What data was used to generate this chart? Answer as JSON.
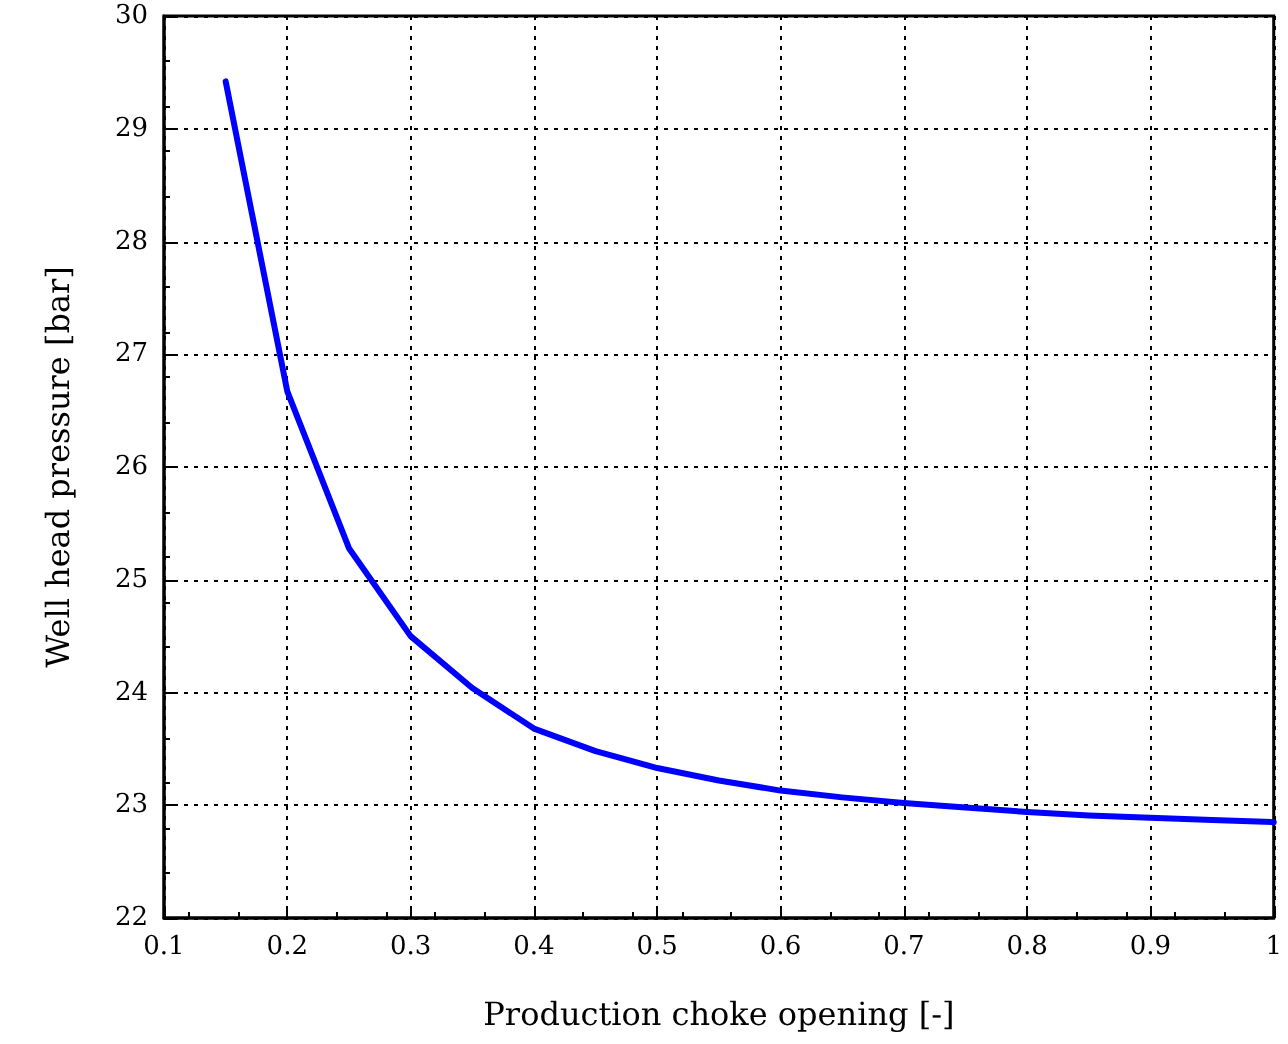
{
  "chart_data": {
    "type": "line",
    "xlabel": "Production choke opening [-]",
    "ylabel": "Well head pressure [bar]",
    "series": [
      {
        "color": "#0000ff",
        "x": [
          0.15,
          0.2,
          0.25,
          0.3,
          0.35,
          0.4,
          0.45,
          0.5,
          0.55,
          0.6,
          0.65,
          0.7,
          0.75,
          0.8,
          0.85,
          0.9,
          0.95,
          1.0
        ],
        "values": [
          29.42,
          26.67,
          25.28,
          24.5,
          24.04,
          23.68,
          23.48,
          23.33,
          23.22,
          23.13,
          23.07,
          23.02,
          22.98,
          22.94,
          22.91,
          22.89,
          22.87,
          22.85
        ]
      }
    ],
    "xlim": [
      0.1,
      1
    ],
    "xticks": [
      0.1,
      0.2,
      0.3,
      0.4,
      0.5,
      0.6,
      0.7,
      0.8,
      0.9,
      1
    ],
    "ylim": [
      22,
      30
    ],
    "yticks": [
      22,
      23,
      24,
      25,
      26,
      27,
      28,
      29,
      30
    ],
    "grid": true,
    "line_style": "solid",
    "marker": "none"
  }
}
